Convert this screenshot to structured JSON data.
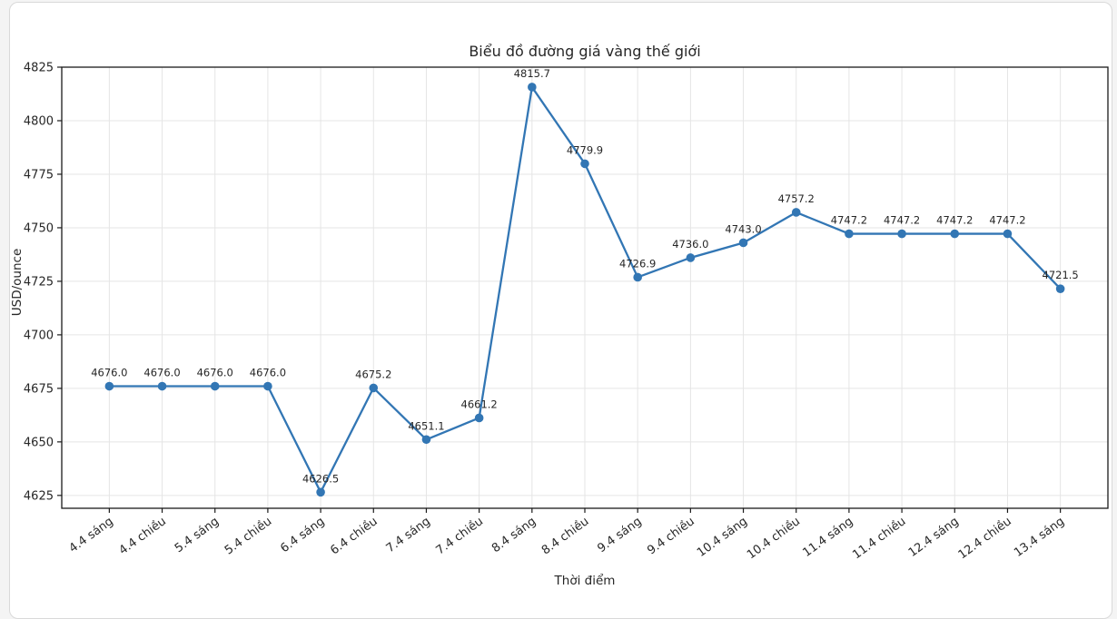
{
  "window": {
    "background_color": "#f4f4f4",
    "card_background": "#ffffff",
    "card_border_color": "#d9d9d9"
  },
  "chart_data": {
    "type": "line",
    "title": "Biểu đồ đường giá vàng thế giới",
    "xlabel": "Thời điểm",
    "ylabel": "USD/ounce",
    "categories": [
      "4.4 sáng",
      "4.4 chiều",
      "5.4 sáng",
      "5.4 chiều",
      "6.4 sáng",
      "6.4 chiều",
      "7.4 sáng",
      "7.4 chiều",
      "8.4 sáng",
      "8.4 chiều",
      "9.4 sáng",
      "9.4 chiều",
      "10.4 sáng",
      "10.4 chiều",
      "11.4 sáng",
      "11.4 chiều",
      "12.4 sáng",
      "12.4 chiều",
      "13.4 sáng"
    ],
    "values": [
      4676.0,
      4676.0,
      4676.0,
      4676.0,
      4626.5,
      4675.2,
      4651.1,
      4661.2,
      4815.7,
      4779.9,
      4726.9,
      4736.0,
      4743.0,
      4757.2,
      4747.2,
      4747.2,
      4747.2,
      4747.2,
      4721.5
    ],
    "point_labels": [
      "4676.0",
      "4676.0",
      "4676.0",
      "4676.0",
      "4626.5",
      "4675.2",
      "4651.1",
      "4661.2",
      "4815.7",
      "4779.9",
      "4726.9",
      "4736.0",
      "4743.0",
      "4757.2",
      "4747.2",
      "4747.2",
      "4747.2",
      "4747.2",
      "4721.5"
    ],
    "yticks": [
      4625,
      4650,
      4675,
      4700,
      4725,
      4750,
      4775,
      4800,
      4825
    ],
    "ylim": [
      4619,
      4825
    ],
    "grid": true,
    "legend_position": "none",
    "line_color": "#3276b4",
    "marker_color": "#3276b4",
    "grid_color": "#e5e5e5",
    "spine_color": "#1a1a1a",
    "text_color": "#262626",
    "xtick_rotation_deg": -36
  }
}
